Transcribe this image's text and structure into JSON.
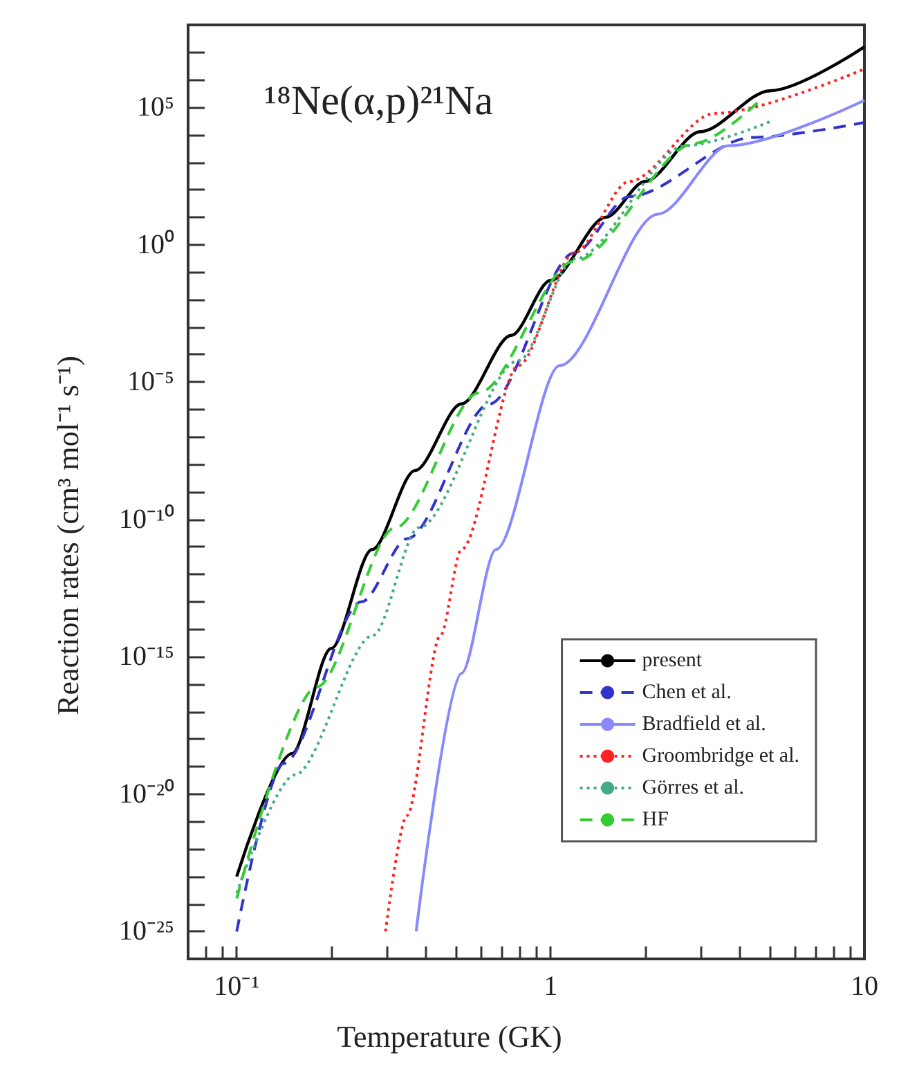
{
  "chart_data": {
    "type": "line",
    "xlabel": "Temperature (GK)",
    "ylabel": "Reaction rates (cm³ mol⁻¹ s⁻¹)",
    "annotations": [
      "¹⁸Ne(α,p)²¹Na"
    ],
    "log": "xy",
    "xlim": [
      0.07,
      10
    ],
    "xticks": [
      {
        "value": 0.08,
        "label": null
      },
      {
        "value": 0.09,
        "label": null
      },
      {
        "value": 0.1,
        "label": "10⁻¹"
      },
      {
        "value": 0.2,
        "label": null
      },
      {
        "value": 0.3,
        "label": null
      },
      {
        "value": 0.4,
        "label": null
      },
      {
        "value": 0.5,
        "label": null
      },
      {
        "value": 0.6,
        "label": null
      },
      {
        "value": 0.7,
        "label": null
      },
      {
        "value": 0.8,
        "label": null
      },
      {
        "value": 0.9,
        "label": null
      },
      1,
      {
        "value": 2,
        "label": null
      },
      {
        "value": 3,
        "label": null
      },
      {
        "value": 4,
        "label": null
      },
      {
        "value": 5,
        "label": null
      },
      {
        "value": 6,
        "label": null
      },
      {
        "value": 7,
        "label": null
      },
      {
        "value": 8,
        "label": null
      },
      {
        "value": 9,
        "label": null
      },
      10
    ],
    "ylim": [
      1e-26,
      100000000.0
    ],
    "yticks": [
      {
        "value": 1e-25,
        "label": "10⁻²⁵"
      },
      {
        "value": 1e-24,
        "label": null
      },
      {
        "value": 1e-23,
        "label": null
      },
      {
        "value": 1e-22,
        "label": null
      },
      {
        "value": 1e-21,
        "label": null
      },
      {
        "value": 1e-20,
        "label": "10⁻²⁰"
      },
      {
        "value": 1e-19,
        "label": null
      },
      {
        "value": 1e-18,
        "label": null
      },
      {
        "value": 1e-17,
        "label": null
      },
      {
        "value": 1e-16,
        "label": null
      },
      {
        "value": 1e-15,
        "label": "10⁻¹⁵"
      },
      {
        "value": 1e-14,
        "label": null
      },
      {
        "value": 1e-13,
        "label": null
      },
      {
        "value": 1e-12,
        "label": null
      },
      {
        "value": 1e-11,
        "label": null
      },
      {
        "value": 1e-10,
        "label": "10⁻¹⁰"
      },
      {
        "value": 1e-09,
        "label": null
      },
      {
        "value": 1e-08,
        "label": null
      },
      {
        "value": 1e-07,
        "label": null
      },
      {
        "value": 1e-06,
        "label": null
      },
      {
        "value": 1e-05,
        "label": "10⁻⁵"
      },
      {
        "value": 0.0001,
        "label": null
      },
      {
        "value": 0.001,
        "label": null
      },
      {
        "value": 0.01,
        "label": null
      },
      {
        "value": 0.1,
        "label": null
      },
      {
        "value": 1,
        "label": "10⁰"
      },
      {
        "value": 10,
        "label": null
      },
      {
        "value": 100,
        "label": null
      },
      {
        "value": 1000,
        "label": null
      },
      {
        "value": 10000,
        "label": null
      },
      {
        "value": 100000,
        "label": "10⁵"
      },
      {
        "value": 1000000,
        "label": null
      },
      {
        "value": 10000000,
        "label": null
      }
    ],
    "grid": false,
    "legend": "bottom right",
    "marker": "none",
    "series": [
      {
        "name": "present",
        "color": "#000000",
        "line_style": "solid",
        "x": [
          0.1,
          0.15,
          0.2,
          0.27,
          0.37,
          0.52,
          0.75,
          1,
          1.5,
          2,
          3,
          5,
          10
        ],
        "values": [
          1e-23,
          3e-19,
          2e-15,
          8e-12,
          6e-09,
          1.6e-06,
          0.0005,
          0.05,
          10,
          200,
          13000,
          400000,
          16000000
        ]
      },
      {
        "name": "Chen et al.",
        "color": "#3333cc",
        "line_style": "dashed",
        "x": [
          0.1,
          0.141,
          0.25,
          0.35,
          0.64,
          1.19,
          1.78,
          4.4,
          10
        ],
        "values": [
          1e-25,
          1.3e-19,
          1e-13,
          2e-11,
          1.6e-06,
          0.5,
          56,
          8000,
          28000
        ]
      },
      {
        "name": "Bradfield et al.",
        "color": "#8888ff",
        "line_style": "solid",
        "x": [
          0.373,
          0.52,
          0.67,
          1.07,
          2.2,
          3.7,
          10
        ],
        "values": [
          1e-25,
          2.5e-16,
          8e-12,
          4e-05,
          13,
          4000,
          180000
        ]
      },
      {
        "name": "Groombridge et al.",
        "color": "#ff2222",
        "line_style": "dotted",
        "x": [
          0.298,
          0.348,
          0.446,
          0.52,
          0.79,
          1.19,
          1.78,
          3.33,
          10
        ],
        "values": [
          1e-25,
          1.6e-21,
          6e-15,
          8e-12,
          4e-05,
          0.5,
          200,
          60000,
          2500000
        ]
      },
      {
        "name": "Görres et al.",
        "color": "#44aa88",
        "line_style": "dotted",
        "x": [
          0.1,
          0.153,
          0.272,
          0.38,
          0.79,
          1.19,
          2.7,
          5
        ],
        "values": [
          2.5e-24,
          5e-20,
          6e-15,
          5e-11,
          6e-05,
          0.3,
          4000,
          30000
        ]
      },
      {
        "name": "HF",
        "color": "#33cc33",
        "line_style": "dashed",
        "x": [
          0.1,
          0.18,
          0.32,
          0.59,
          1.19,
          2.9,
          4.6
        ],
        "values": [
          1.6e-24,
          8e-17,
          5e-11,
          4e-06,
          0.25,
          5000,
          160000
        ]
      }
    ]
  }
}
